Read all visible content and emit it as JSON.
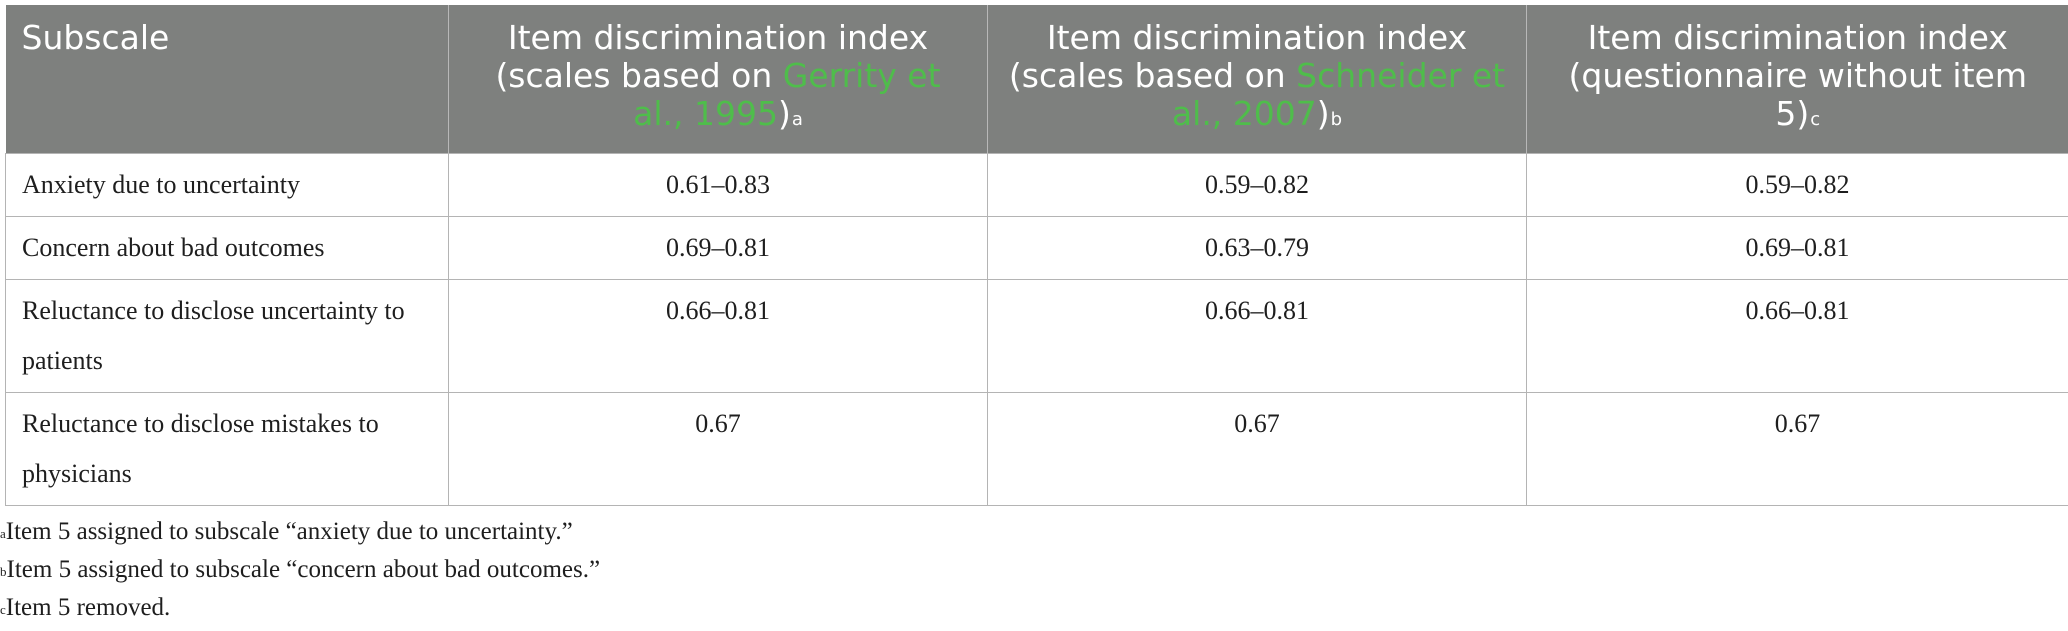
{
  "table": {
    "header": {
      "col1": "Subscale",
      "col2": {
        "prefix": "Item discrimination index (scales based on ",
        "citation": "Gerrity et al., 1995",
        "suffix": ")",
        "footnote_mark": "a"
      },
      "col3": {
        "prefix": "Item discrimination index (scales based on ",
        "citation": "Schneider et al., 2007",
        "suffix": ")",
        "footnote_mark": "b"
      },
      "col4": {
        "prefix": "Item discrimination index (questionnaire without item 5)",
        "footnote_mark": "c"
      }
    },
    "rows": [
      {
        "subscale": "Anxiety due to uncertainty",
        "gerrity": "0.61–0.83",
        "schneider": "0.59–0.82",
        "without5": "0.59–0.82"
      },
      {
        "subscale": "Concern about bad outcomes",
        "gerrity": "0.69–0.81",
        "schneider": "0.63–0.79",
        "without5": "0.69–0.81"
      },
      {
        "subscale": "Reluctance to disclose uncertainty to patients",
        "gerrity": "0.66–0.81",
        "schneider": "0.66–0.81",
        "without5": "0.66–0.81"
      },
      {
        "subscale": "Reluctance to disclose mistakes to physicians",
        "gerrity": "0.67",
        "schneider": "0.67",
        "without5": "0.67"
      }
    ]
  },
  "footnotes": [
    {
      "mark": "a",
      "text": "Item 5 assigned to subscale “anxiety due to uncertainty.”"
    },
    {
      "mark": "b",
      "text": "Item 5 assigned to subscale “concern about bad outcomes.”"
    },
    {
      "mark": "c",
      "text": "Item 5 removed."
    }
  ],
  "colors": {
    "header_bg": "#7e807e",
    "header_text": "#ffffff",
    "citation_link": "#4fbd4b",
    "border": "#b4b4b4"
  }
}
